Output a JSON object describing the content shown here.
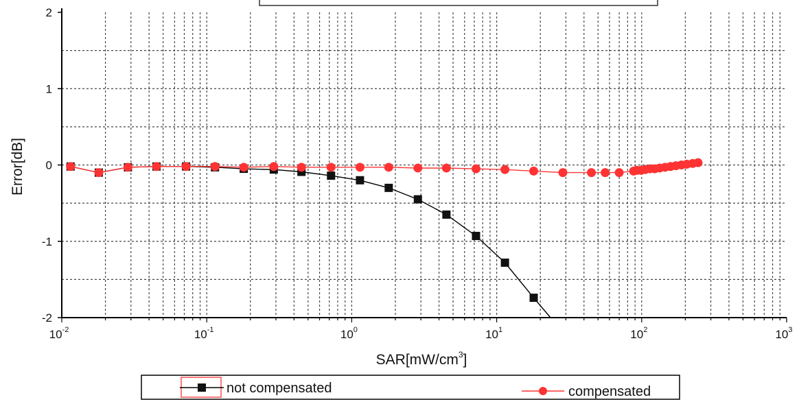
{
  "chart_data": {
    "type": "line",
    "title": "",
    "xlabel": "SAR[mW/cm",
    "xlabel_sup": "3",
    "xlabel_end": "]",
    "ylabel": "Error[dB]",
    "xscale": "log",
    "xlim": [
      0.01,
      1000
    ],
    "ylim": [
      -2,
      2
    ],
    "grid": true,
    "legend_position": "bottom",
    "x_ticks": [
      {
        "base": "10",
        "exp": "-2",
        "value": 0.01
      },
      {
        "base": "10",
        "exp": "-1",
        "value": 0.1
      },
      {
        "base": "10",
        "exp": "0",
        "value": 1
      },
      {
        "base": "10",
        "exp": "1",
        "value": 10
      },
      {
        "base": "10",
        "exp": "2",
        "value": 100
      },
      {
        "base": "10",
        "exp": "3",
        "value": 1000
      }
    ],
    "y_ticks": [
      {
        "label": "2",
        "value": 2
      },
      {
        "label": "1",
        "value": 1
      },
      {
        "label": "0",
        "value": 0
      },
      {
        "label": "-1",
        "value": -1
      },
      {
        "label": "-2",
        "value": -2
      }
    ],
    "series": [
      {
        "name": "not compensated",
        "color": "#000000",
        "marker": "square",
        "x": [
          0.0115,
          0.018,
          0.0286,
          0.045,
          0.072,
          0.114,
          0.18,
          0.29,
          0.45,
          0.72,
          1.14,
          1.8,
          2.86,
          4.5,
          7.2,
          11.4,
          18.0
        ],
        "y": [
          -0.02,
          -0.1,
          -0.03,
          -0.02,
          -0.02,
          -0.03,
          -0.05,
          -0.06,
          -0.09,
          -0.14,
          -0.2,
          -0.3,
          -0.45,
          -0.65,
          -0.93,
          -1.28,
          -1.74
        ],
        "curve_extends_to": [
          23.5,
          -2.0
        ]
      },
      {
        "name": "compensated",
        "color": "#ff3333",
        "marker": "circle",
        "x": [
          0.0115,
          0.018,
          0.0286,
          0.045,
          0.072,
          0.114,
          0.18,
          0.29,
          0.45,
          0.72,
          1.14,
          1.8,
          2.86,
          4.5,
          7.2,
          11.4,
          18.0,
          28.6,
          45.0,
          56.0,
          70.0,
          88.0,
          93.0,
          99.0,
          106.0,
          114.0,
          123.0,
          133.0,
          145.0,
          158.0,
          172.0,
          188.0,
          205.0,
          225.0,
          245.0
        ],
        "y": [
          -0.02,
          -0.1,
          -0.03,
          -0.02,
          -0.02,
          -0.02,
          -0.03,
          -0.02,
          -0.03,
          -0.03,
          -0.03,
          -0.03,
          -0.04,
          -0.04,
          -0.05,
          -0.06,
          -0.08,
          -0.1,
          -0.1,
          -0.1,
          -0.1,
          -0.08,
          -0.07,
          -0.07,
          -0.06,
          -0.05,
          -0.05,
          -0.04,
          -0.03,
          -0.02,
          -0.01,
          0.0,
          0.01,
          0.02,
          0.03
        ]
      }
    ]
  }
}
